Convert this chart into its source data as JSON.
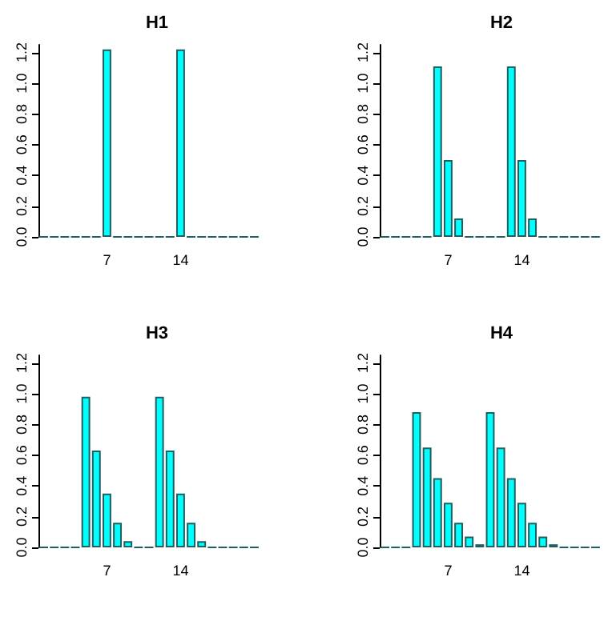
{
  "chart_data": [
    {
      "type": "bar",
      "title": "H1",
      "categories": [
        null,
        null,
        null,
        null,
        null,
        null,
        "7",
        null,
        null,
        null,
        null,
        null,
        null,
        "14",
        null,
        null,
        null,
        null,
        null,
        null,
        null
      ],
      "values": [
        0,
        0,
        0,
        0,
        0,
        0,
        1.22,
        0,
        0,
        0,
        0,
        0,
        0,
        1.22,
        0,
        0,
        0,
        0,
        0,
        0,
        0
      ],
      "colors": [
        "#1f5f5f",
        "#1f5f5f",
        "#1f5f5f",
        "#1f5f5f",
        "#1f5f5f",
        "#1f5f5f",
        "#00ffff",
        "#1f5f5f",
        "#1f5f5f",
        "#1f5f5f",
        "#1f5f5f",
        "#1f5f5f",
        "#1f5f5f",
        "#00ffff",
        "#1f5f5f",
        "#1f5f5f",
        "#1f5f5f",
        "#1f5f5f",
        "#1f5f5f",
        "#1f5f5f",
        "#1f5f5f"
      ],
      "ylim": [
        0,
        1.25
      ],
      "yticks": [
        {
          "value": 0,
          "label": "0.0"
        },
        {
          "value": 0.2,
          "label": "0.2"
        },
        {
          "value": 0.4,
          "label": "0.4"
        },
        {
          "value": 0.6,
          "label": "0.6"
        },
        {
          "value": 0.8,
          "label": "0.8"
        },
        {
          "value": 1,
          "label": "1.0"
        },
        {
          "value": 1.2,
          "label": "1.2"
        }
      ]
    },
    {
      "type": "bar",
      "title": "H2",
      "categories": [
        null,
        null,
        null,
        null,
        null,
        null,
        "7",
        null,
        null,
        null,
        null,
        null,
        null,
        "14",
        null,
        null,
        null,
        null,
        null,
        null,
        null
      ],
      "values": [
        0,
        0,
        0,
        0,
        0,
        1.11,
        0.5,
        0.12,
        0,
        0,
        0,
        0,
        1.11,
        0.5,
        0.12,
        0,
        0,
        0,
        0,
        0,
        0
      ],
      "colors": [
        "#1f5f5f",
        "#1f5f5f",
        "#1f5f5f",
        "#1f5f5f",
        "#1f5f5f",
        "#00ffff",
        "#00ffff",
        "#00ffff",
        "#1f5f5f",
        "#1f5f5f",
        "#1f5f5f",
        "#1f5f5f",
        "#00ffff",
        "#00ffff",
        "#00ffff",
        "#1f5f5f",
        "#1f5f5f",
        "#1f5f5f",
        "#1f5f5f",
        "#1f5f5f",
        "#1f5f5f"
      ],
      "ylim": [
        0,
        1.25
      ],
      "yticks": [
        {
          "value": 0,
          "label": "0.0"
        },
        {
          "value": 0.2,
          "label": "0.2"
        },
        {
          "value": 0.4,
          "label": "0.4"
        },
        {
          "value": 0.6,
          "label": "0.6"
        },
        {
          "value": 0.8,
          "label": "0.8"
        },
        {
          "value": 1,
          "label": "1.0"
        },
        {
          "value": 1.2,
          "label": "1.2"
        }
      ]
    },
    {
      "type": "bar",
      "title": "H3",
      "categories": [
        null,
        null,
        null,
        null,
        null,
        null,
        "7",
        null,
        null,
        null,
        null,
        null,
        null,
        "14",
        null,
        null,
        null,
        null,
        null,
        null,
        null
      ],
      "values": [
        0,
        0,
        0,
        0,
        0.98,
        0.63,
        0.35,
        0.16,
        0.04,
        0,
        0,
        0.98,
        0.63,
        0.35,
        0.16,
        0.04,
        0,
        0,
        0,
        0,
        0
      ],
      "colors": [
        "#1f5f5f",
        "#1f5f5f",
        "#1f5f5f",
        "#1f5f5f",
        "#00ffff",
        "#00ffff",
        "#00ffff",
        "#00ffff",
        "#00ffff",
        "#1f5f5f",
        "#1f5f5f",
        "#00ffff",
        "#00ffff",
        "#00ffff",
        "#00ffff",
        "#00ffff",
        "#1f5f5f",
        "#1f5f5f",
        "#1f5f5f",
        "#1f5f5f",
        "#1f5f5f"
      ],
      "ylim": [
        0,
        1.25
      ],
      "yticks": [
        {
          "value": 0,
          "label": "0.0"
        },
        {
          "value": 0.2,
          "label": "0.2"
        },
        {
          "value": 0.4,
          "label": "0.4"
        },
        {
          "value": 0.6,
          "label": "0.6"
        },
        {
          "value": 0.8,
          "label": "0.8"
        },
        {
          "value": 1,
          "label": "1.0"
        },
        {
          "value": 1.2,
          "label": "1.2"
        }
      ]
    },
    {
      "type": "bar",
      "title": "H4",
      "categories": [
        null,
        null,
        null,
        null,
        null,
        null,
        "7",
        null,
        null,
        null,
        null,
        null,
        null,
        "14",
        null,
        null,
        null,
        null,
        null,
        null,
        null
      ],
      "values": [
        0,
        0,
        0,
        0.88,
        0.65,
        0.45,
        0.29,
        0.16,
        0.07,
        0.02,
        0.88,
        0.65,
        0.45,
        0.29,
        0.16,
        0.07,
        0.02,
        0,
        0,
        0,
        0
      ],
      "colors": [
        "#1f5f5f",
        "#1f5f5f",
        "#1f5f5f",
        "#00ffff",
        "#00ffff",
        "#00ffff",
        "#00ffff",
        "#00ffff",
        "#00ffff",
        "#00ffff",
        "#00ffff",
        "#00ffff",
        "#00ffff",
        "#00ffff",
        "#00ffff",
        "#00ffff",
        "#00ffff",
        "#1f5f5f",
        "#1f5f5f",
        "#1f5f5f",
        "#1f5f5f"
      ],
      "ylim": [
        0,
        1.25
      ],
      "yticks": [
        {
          "value": 0,
          "label": "0.0"
        },
        {
          "value": 0.2,
          "label": "0.2"
        },
        {
          "value": 0.4,
          "label": "0.4"
        },
        {
          "value": 0.6,
          "label": "0.6"
        },
        {
          "value": 0.8,
          "label": "0.8"
        },
        {
          "value": 1,
          "label": "1.0"
        },
        {
          "value": 1.2,
          "label": "1.2"
        }
      ]
    }
  ]
}
